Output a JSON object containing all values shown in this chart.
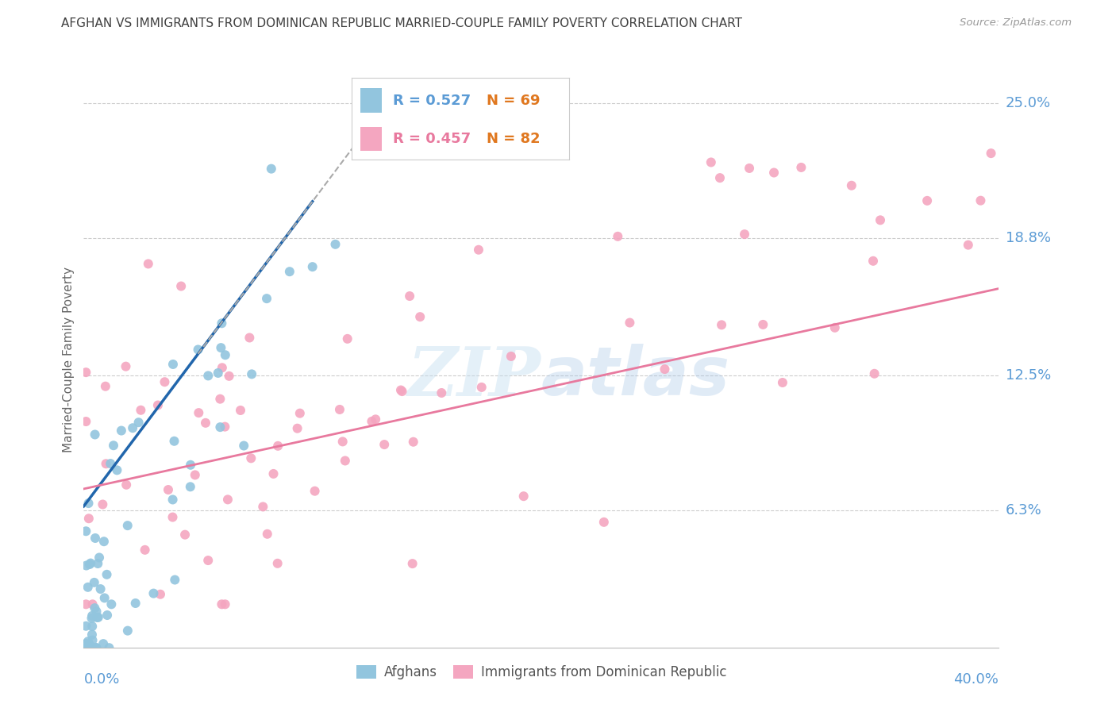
{
  "title": "AFGHAN VS IMMIGRANTS FROM DOMINICAN REPUBLIC MARRIED-COUPLE FAMILY POVERTY CORRELATION CHART",
  "source": "Source: ZipAtlas.com",
  "ylabel": "Married-Couple Family Poverty",
  "ytick_labels": [
    "25.0%",
    "18.8%",
    "12.5%",
    "6.3%"
  ],
  "ytick_values": [
    0.25,
    0.188,
    0.125,
    0.063
  ],
  "xlim": [
    0.0,
    0.4
  ],
  "ylim": [
    0.0,
    0.265
  ],
  "legend": {
    "afghan_R": "0.527",
    "afghan_N": "69",
    "dominican_R": "0.457",
    "dominican_N": "82"
  },
  "watermark": "ZIPAtlas",
  "afghan_color": "#92c5de",
  "dominican_color": "#f4a6c0",
  "afghan_line_color": "#2166ac",
  "dominican_line_color": "#e8799e",
  "background_color": "#ffffff",
  "grid_color": "#cccccc",
  "axis_label_color": "#5b9bd5",
  "title_color": "#404040",
  "legend_R_color_afghan": "#5b9bd5",
  "legend_N_color_afghan": "#e07820",
  "legend_R_color_dominican": "#e8799e",
  "legend_N_color_dominican": "#e07820"
}
